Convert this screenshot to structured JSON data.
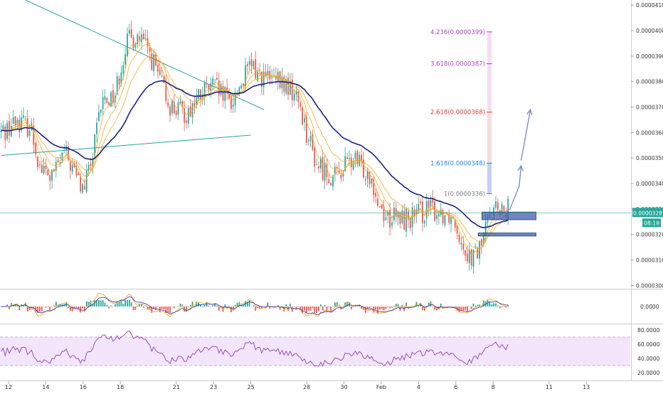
{
  "chart_data": {
    "type": "candlestick",
    "price_axis": {
      "ticks": [
        {
          "label": "0.0000410",
          "value": 410
        },
        {
          "label": "0.0000400",
          "value": 400
        },
        {
          "label": "0.0000390",
          "value": 390
        },
        {
          "label": "0.0000380",
          "value": 380
        },
        {
          "label": "0.0000370",
          "value": 370
        },
        {
          "label": "0.0000360",
          "value": 360
        },
        {
          "label": "0.0000350",
          "value": 350
        },
        {
          "label": "0.0000340",
          "value": 340
        },
        {
          "label": "0.0000330",
          "value": 330
        },
        {
          "label": "0.0000320",
          "value": 320
        },
        {
          "label": "0.0000310",
          "value": 310
        },
        {
          "label": "0.0000300",
          "value": 300
        }
      ],
      "ylim": [
        299,
        412
      ]
    },
    "current_price": {
      "label": "0.0000328",
      "value": 328.5,
      "countdown": "08:19"
    },
    "time_axis": {
      "ticks": [
        "12",
        "14",
        "16",
        "18",
        "21",
        "23",
        "25",
        "28",
        "30",
        "Feb",
        "4",
        "6",
        "8",
        "11",
        "13"
      ],
      "positions": [
        0,
        2,
        4,
        6,
        9,
        11,
        13,
        16,
        18,
        20,
        22,
        24,
        26,
        29,
        31
      ]
    },
    "candles": {
      "count": 250,
      "start_day": -0.4,
      "end_day": 26.8,
      "anchors": [
        [
          -0.4,
          360
        ],
        [
          0.5,
          365
        ],
        [
          1.2,
          362
        ],
        [
          1.7,
          346
        ],
        [
          2.3,
          342
        ],
        [
          3.0,
          352
        ],
        [
          3.5,
          345
        ],
        [
          4.0,
          337
        ],
        [
          4.5,
          350
        ],
        [
          5.0,
          372
        ],
        [
          5.7,
          375
        ],
        [
          6.3,
          395
        ],
        [
          6.9,
          398
        ],
        [
          7.5,
          392
        ],
        [
          8.0,
          383
        ],
        [
          8.6,
          371
        ],
        [
          9.0,
          369
        ],
        [
          9.5,
          367
        ],
        [
          10.0,
          372
        ],
        [
          10.5,
          376
        ],
        [
          11.0,
          378
        ],
        [
          11.5,
          374
        ],
        [
          12.0,
          372
        ],
        [
          12.5,
          380
        ],
        [
          13.0,
          386
        ],
        [
          13.6,
          382
        ],
        [
          14.2,
          380
        ],
        [
          15.0,
          378
        ],
        [
          15.6,
          372
        ],
        [
          16.0,
          360
        ],
        [
          16.5,
          348
        ],
        [
          17.0,
          345
        ],
        [
          17.5,
          342
        ],
        [
          18.0,
          347
        ],
        [
          18.5,
          349
        ],
        [
          19.0,
          346
        ],
        [
          19.5,
          343
        ],
        [
          19.8,
          333
        ],
        [
          20.3,
          327
        ],
        [
          21.0,
          326
        ],
        [
          21.8,
          327
        ],
        [
          22.5,
          330
        ],
        [
          23.0,
          329
        ],
        [
          23.7,
          328
        ],
        [
          24.0,
          325
        ],
        [
          24.3,
          318
        ],
        [
          24.7,
          312
        ],
        [
          25.0,
          311
        ],
        [
          25.3,
          315
        ],
        [
          25.6,
          322
        ],
        [
          25.8,
          332
        ],
        [
          26.1,
          331
        ],
        [
          26.4,
          327
        ],
        [
          26.8,
          330
        ]
      ]
    },
    "ema_overlays": [
      {
        "color": "#f5a623",
        "period": 5
      },
      {
        "color": "#f5a623",
        "period": 10
      },
      {
        "color": "#f5a623",
        "period": 18
      },
      {
        "color": "#1a237e",
        "period": 40
      }
    ],
    "trend_lines": [
      {
        "color": "#26a69a",
        "from": [
          0.9,
          412
        ],
        "to": [
          13.7,
          369
        ]
      },
      {
        "color": "#26a69a",
        "from": [
          -0.4,
          351
        ],
        "to": [
          13.0,
          359
        ]
      }
    ],
    "fibonacci_extension": {
      "day": 25.8,
      "levels": [
        {
          "label": "4.236(0.0000399)",
          "value": 399.5,
          "color": "#ab47bc"
        },
        {
          "label": "3.618(0.0000387)",
          "value": 387,
          "color": "#ab47bc"
        },
        {
          "label": "2.618(0.0000368)",
          "value": 368,
          "color": "#e53935"
        },
        {
          "label": "1.618(0.0000348)",
          "value": 348,
          "color": "#1e88e5"
        },
        {
          "label": "1(0.0000336)",
          "value": 336,
          "color": "#787b86"
        }
      ]
    },
    "zones": [
      {
        "color": "#3f5fa8",
        "day_from": 25.4,
        "day_to": 28.3,
        "low": 325.8,
        "high": 328.8
      },
      {
        "color": "#3f5fa8",
        "day_from": 25.2,
        "day_to": 28.3,
        "low": 319.4,
        "high": 320.6
      }
    ],
    "projection_arrows": [
      {
        "color": "#7e8fc0",
        "points": [
          [
            26.3,
            326
          ],
          [
            26.9,
            330
          ],
          [
            27.4,
            339
          ],
          [
            27.5,
            347
          ]
        ]
      },
      {
        "color": "#7e8fc0",
        "points": [
          [
            27.5,
            349
          ],
          [
            28.0,
            369
          ]
        ]
      }
    ],
    "oscillator": {
      "zero_label": "0.0000",
      "colors": [
        "#26a69a",
        "#ef5350",
        "#f5a623",
        "#3949ab"
      ]
    },
    "rsi": {
      "ticks": [
        {
          "label": "80.0000",
          "value": 80
        },
        {
          "label": "60.0000",
          "value": 60
        },
        {
          "label": "40.0000",
          "value": 40
        },
        {
          "label": "20.0000",
          "value": 20
        }
      ],
      "band": [
        30,
        70
      ],
      "color": "#8e44ad"
    }
  }
}
